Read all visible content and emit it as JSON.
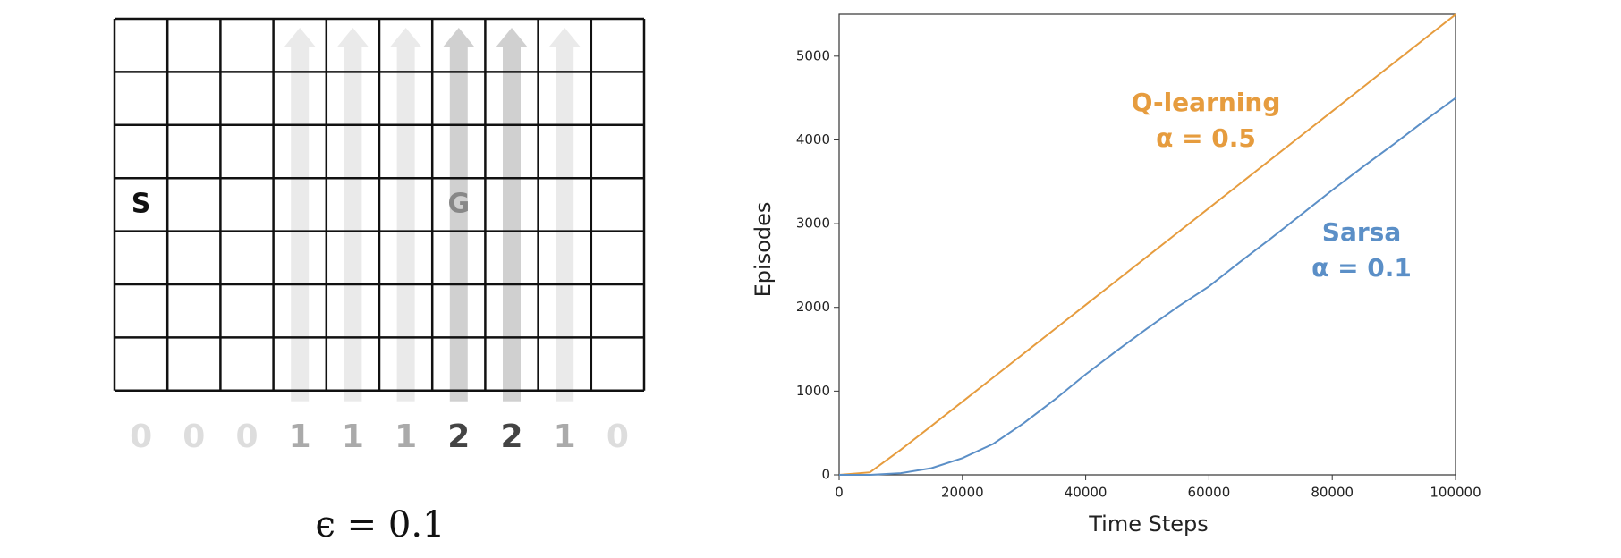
{
  "gridworld": {
    "start": "S",
    "goal": "G",
    "wind": [
      0,
      0,
      0,
      1,
      1,
      1,
      2,
      2,
      1,
      0
    ],
    "epsilon": "ϵ = 0.1"
  },
  "chart_data": {
    "type": "line",
    "xlabel": "Time Steps",
    "ylabel": "Episodes",
    "x": [
      0,
      5000,
      10000,
      15000,
      20000,
      25000,
      30000,
      35000,
      40000,
      45000,
      50000,
      55000,
      60000,
      65000,
      70000,
      75000,
      80000,
      85000,
      90000,
      95000,
      100000
    ],
    "series": [
      {
        "name": "Q-learning",
        "annotation": "α = 0.5",
        "color": "#e69c3e",
        "values": [
          0,
          30,
          300,
          585,
          874,
          1163,
          1452,
          1741,
          2030,
          2319,
          2608,
          2897,
          3186,
          3475,
          3764,
          4053,
          4342,
          4631,
          4920,
          5209,
          5498
        ]
      },
      {
        "name": "Sarsa",
        "annotation": "α = 0.1",
        "color": "#5b8fc7",
        "values": [
          0,
          0,
          20,
          80,
          200,
          370,
          620,
          900,
          1200,
          1480,
          1750,
          2010,
          2250,
          2540,
          2820,
          3110,
          3400,
          3680,
          3950,
          4230,
          4500
        ]
      }
    ],
    "xlim": [
      0,
      100000
    ],
    "ylim": [
      0,
      5500
    ],
    "xticks": [
      0,
      20000,
      40000,
      60000,
      80000,
      100000
    ],
    "yticks": [
      0,
      1000,
      2000,
      3000,
      4000,
      5000
    ],
    "grid": false
  }
}
